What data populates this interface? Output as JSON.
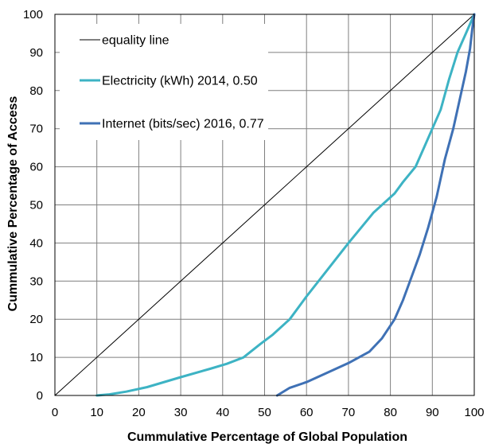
{
  "chart_data": {
    "type": "line",
    "xlabel": "Cummulative Percentage  of Global Population",
    "ylabel": "Cummulative  Percentage  of Access",
    "xlim": [
      0,
      100
    ],
    "ylim": [
      0,
      100
    ],
    "xticks": [
      0,
      10,
      20,
      30,
      40,
      50,
      60,
      70,
      80,
      90,
      100
    ],
    "yticks": [
      0,
      10,
      20,
      30,
      40,
      50,
      60,
      70,
      80,
      90,
      100
    ],
    "grid": true,
    "legend_position": "top-left",
    "series": [
      {
        "name": "equality line",
        "color": "#000000",
        "x": [
          0,
          100
        ],
        "y": [
          0,
          100
        ]
      },
      {
        "name": "Electricity (kWh) 2014, 0.50",
        "color": "#3DB3C4",
        "x": [
          10,
          13,
          17,
          22,
          30,
          37,
          41,
          45,
          49,
          52,
          56,
          60,
          65,
          70,
          76,
          81,
          83,
          86,
          88,
          90,
          92,
          94,
          96,
          98,
          100
        ],
        "y": [
          0,
          0.3,
          1,
          2.2,
          4.8,
          7,
          8.3,
          10,
          13.5,
          16,
          20,
          26,
          33,
          40,
          48,
          53,
          56,
          60,
          65,
          70,
          75,
          83,
          90,
          95,
          100
        ]
      },
      {
        "name": "Internet (bits/sec) 2016, 0.77",
        "color": "#3F71B5",
        "x": [
          53,
          56,
          60,
          65,
          70,
          75,
          78,
          81,
          83,
          85,
          87,
          89,
          91,
          93,
          95,
          96,
          97,
          98,
          99,
          99.5,
          100
        ],
        "y": [
          0,
          2,
          3.5,
          6,
          8.5,
          11.5,
          15,
          20,
          25,
          31,
          37,
          44,
          52,
          62,
          70,
          75,
          80,
          85,
          91,
          96,
          100
        ]
      }
    ]
  }
}
